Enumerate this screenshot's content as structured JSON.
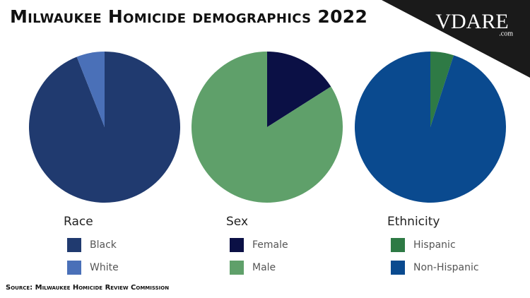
{
  "title": "Milwaukee Homicide demographics 2022",
  "source": "Source: Milwaukee Homicide Review Commission",
  "logo": {
    "text": "VDARE",
    "suffix": ".com"
  },
  "chart_data": [
    {
      "type": "pie",
      "title": "Race",
      "categories": [
        "Black",
        "White"
      ],
      "values": [
        94,
        6
      ],
      "colors": [
        "#203a6f",
        "#4a70b8"
      ]
    },
    {
      "type": "pie",
      "title": "Sex",
      "categories": [
        "Female",
        "Male"
      ],
      "values": [
        16,
        84
      ],
      "colors": [
        "#0b1045",
        "#5fa06a"
      ]
    },
    {
      "type": "pie",
      "title": "Ethnicity",
      "categories": [
        "Hispanic",
        "Non-Hispanic"
      ],
      "values": [
        5,
        95
      ],
      "colors": [
        "#2e7a45",
        "#0a4a8f"
      ]
    }
  ]
}
